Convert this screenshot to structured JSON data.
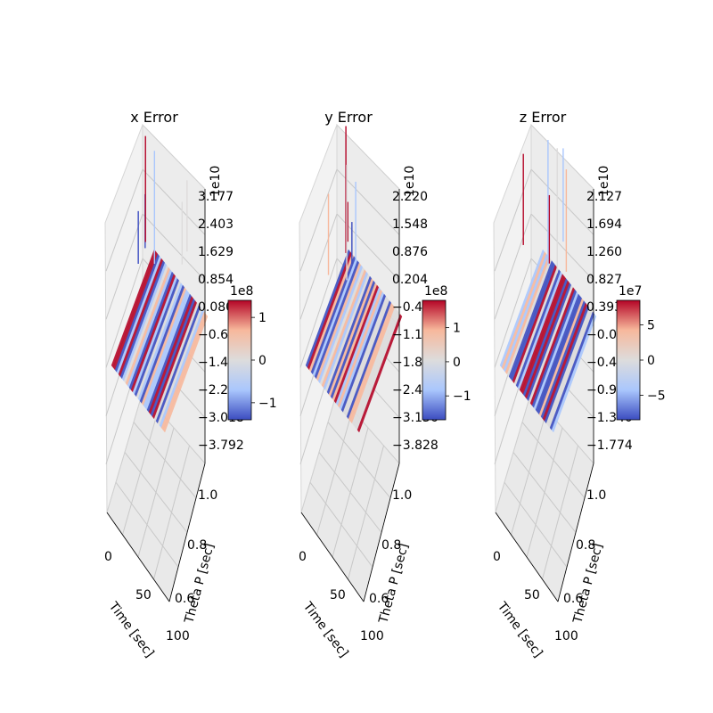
{
  "chart_data": [
    {
      "type": "surface3d",
      "title": "x Error",
      "xlabel": "Time [sec]",
      "ylabel": "Theta P [sec]",
      "x_ticks": [
        "0",
        "50",
        "100"
      ],
      "y_ticks": [
        "0.6",
        "0.8",
        "1.0"
      ],
      "z_ticks": [
        "3.177",
        "2.403",
        "1.629",
        "0.854",
        "0.080",
        "-0.694",
        "-1.468",
        "-2.243",
        "-3.018",
        "-3.792"
      ],
      "z_offset": "1e10",
      "colorbar": {
        "offset": "1e8",
        "ticks": [
          {
            "label": "1",
            "value": 1
          },
          {
            "label": "0",
            "value": 0
          },
          {
            "label": "−1",
            "value": -1
          }
        ],
        "min": -1.4,
        "max": 1.4
      },
      "colormap": [
        "#3b4cc0",
        "#aac7fd",
        "#dddcdc",
        "#f7b89c",
        "#b40426"
      ]
    },
    {
      "type": "surface3d",
      "title": "y Error",
      "xlabel": "Time [sec]",
      "ylabel": "Theta P [sec]",
      "x_ticks": [
        "0",
        "50",
        "100"
      ],
      "y_ticks": [
        "0.6",
        "0.8",
        "1.0"
      ],
      "z_ticks": [
        "2.220",
        "1.548",
        "0.876",
        "0.204",
        "-0.468",
        "-1.140",
        "-1.812",
        "-2.484",
        "-3.156",
        "-3.828"
      ],
      "z_offset": "1e10",
      "colorbar": {
        "offset": "1e8",
        "ticks": [
          {
            "label": "1",
            "value": 1
          },
          {
            "label": "0",
            "value": 0
          },
          {
            "label": "−1",
            "value": -1
          }
        ],
        "min": -1.7,
        "max": 1.8
      },
      "colormap": [
        "#3b4cc0",
        "#aac7fd",
        "#dddcdc",
        "#f7b89c",
        "#b40426"
      ]
    },
    {
      "type": "surface3d",
      "title": "z Error",
      "xlabel": "Time [sec]",
      "ylabel": "Theta P [sec]",
      "x_ticks": [
        "0",
        "50",
        "100"
      ],
      "y_ticks": [
        "0.6",
        "0.8",
        "1.0"
      ],
      "z_ticks": [
        "2.127",
        "1.694",
        "1.260",
        "0.827",
        "0.393",
        "-0.040",
        "-0.474",
        "-0.907",
        "-1.340",
        "-1.774"
      ],
      "z_offset": "1e10",
      "colorbar": {
        "offset": "1e7",
        "ticks": [
          {
            "label": "5",
            "value": 5
          },
          {
            "label": "0",
            "value": 0
          },
          {
            "label": "−5",
            "value": -5
          }
        ],
        "min": -8.5,
        "max": 8.5
      },
      "colormap": [
        "#3b4cc0",
        "#aac7fd",
        "#dddcdc",
        "#f7b89c",
        "#b40426"
      ]
    }
  ]
}
